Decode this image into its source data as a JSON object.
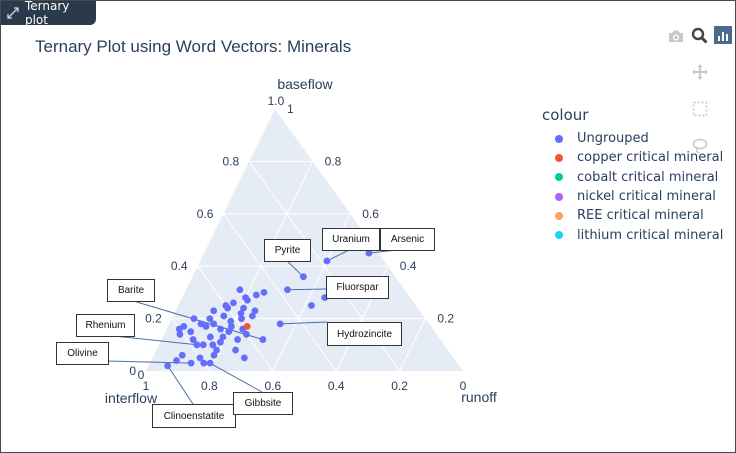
{
  "window": {
    "tab_label": "Ternary plot"
  },
  "colors": {
    "accent": "#636efa",
    "ternary_bg": "#e5ecf6",
    "text": "#2a3f5f",
    "copper": "#ef553b",
    "cobalt": "#00cc96",
    "nickel": "#ab63fa",
    "ree": "#ffa15a",
    "lithium": "#19d3f3"
  },
  "chart_data": {
    "type": "scatter",
    "subtype": "ternary",
    "title": "Ternary Plot using Word Vectors: Minerals",
    "axes": {
      "a": {
        "label": "baseflow",
        "ticks": [
          "1.0",
          "0.8",
          "0.6",
          "0.4",
          "0.2",
          "0"
        ]
      },
      "b": {
        "label": "interflow",
        "ticks": [
          "1",
          "0.8",
          "0.6",
          "0.4",
          "0.2",
          "0"
        ]
      },
      "c": {
        "label": "runoff",
        "ticks": [
          "0",
          "0.2",
          "0.4",
          "0.6",
          "0.8",
          "1"
        ]
      }
    },
    "legend": {
      "title": "colour",
      "placement": "right",
      "items": [
        {
          "name": "Ungrouped",
          "color": "#636efa"
        },
        {
          "name": "copper critical mineral",
          "color": "#ef553b"
        },
        {
          "name": "cobalt critical mineral",
          "color": "#00cc96"
        },
        {
          "name": "nickel critical mineral",
          "color": "#ab63fa"
        },
        {
          "name": "REE critical mineral",
          "color": "#ffa15a"
        },
        {
          "name": "lithium critical mineral",
          "color": "#19d3f3"
        }
      ]
    },
    "series": [
      {
        "name": "Ungrouped",
        "points": [
          [
            0.16,
            0.8,
            0.04
          ],
          [
            0.17,
            0.78,
            0.05
          ],
          [
            0.15,
            0.77,
            0.08
          ],
          [
            0.18,
            0.72,
            0.1
          ],
          [
            0.2,
            0.73,
            0.07
          ],
          [
            0.12,
            0.78,
            0.1
          ],
          [
            0.14,
            0.81,
            0.05
          ],
          [
            0.18,
            0.68,
            0.14
          ],
          [
            0.16,
            0.67,
            0.17
          ],
          [
            0.13,
            0.72,
            0.15
          ],
          [
            0.1,
            0.78,
            0.12
          ],
          [
            0.1,
            0.73,
            0.17
          ],
          [
            0.21,
            0.63,
            0.16
          ],
          [
            0.24,
            0.6,
            0.16
          ],
          [
            0.2,
            0.58,
            0.22
          ],
          [
            0.22,
            0.57,
            0.21
          ],
          [
            0.24,
            0.55,
            0.21
          ],
          [
            0.27,
            0.52,
            0.21
          ],
          [
            0.23,
            0.52,
            0.25
          ],
          [
            0.21,
            0.54,
            0.25
          ],
          [
            0.29,
            0.48,
            0.23
          ],
          [
            0.31,
            0.52,
            0.17
          ],
          [
            0.17,
            0.63,
            0.2
          ],
          [
            0.15,
            0.65,
            0.2
          ],
          [
            0.12,
            0.64,
            0.24
          ],
          [
            0.14,
            0.6,
            0.26
          ],
          [
            0.08,
            0.73,
            0.19
          ],
          [
            0.06,
            0.75,
            0.19
          ],
          [
            0.05,
            0.8,
            0.15
          ],
          [
            0.06,
            0.85,
            0.09
          ],
          [
            0.03,
            0.84,
            0.13
          ],
          [
            0.03,
            0.8,
            0.17
          ],
          [
            0.04,
            0.88,
            0.08
          ],
          [
            0.02,
            0.92,
            0.06
          ],
          [
            0.03,
            0.78,
            0.19
          ],
          [
            0.08,
            0.67,
            0.25
          ],
          [
            0.2,
            0.68,
            0.12
          ],
          [
            0.23,
            0.65,
            0.12
          ],
          [
            0.11,
            0.7,
            0.19
          ],
          [
            0.25,
            0.6,
            0.15
          ],
          [
            0.13,
            0.68,
            0.19
          ],
          [
            0.19,
            0.62,
            0.19
          ],
          [
            0.16,
            0.6,
            0.24
          ],
          [
            0.17,
            0.71,
            0.12
          ],
          [
            0.1,
            0.76,
            0.14
          ],
          [
            0.3,
            0.45,
            0.25
          ],
          [
            0.28,
            0.52,
            0.2
          ],
          [
            0.26,
            0.57,
            0.17
          ],
          [
            0.31,
            0.37,
            0.32
          ],
          [
            0.42,
            0.18,
            0.4
          ],
          [
            0.36,
            0.29,
            0.35
          ],
          [
            0.28,
            0.27,
            0.45
          ],
          [
            0.45,
            0.03,
            0.52
          ],
          [
            0.25,
            0.33,
            0.42
          ],
          [
            0.12,
            0.56,
            0.32
          ],
          [
            0.18,
            0.47,
            0.35
          ],
          [
            0.05,
            0.66,
            0.29
          ]
        ]
      },
      {
        "name": "copper critical mineral",
        "points": [
          [
            0.17,
            0.58,
            0.25
          ]
        ]
      }
    ],
    "annotations": [
      {
        "text": "Uranium",
        "point": [
          0.42,
          0.18,
          0.4
        ]
      },
      {
        "text": "Arsenic",
        "point": [
          0.45,
          0.03,
          0.52
        ]
      },
      {
        "text": "Pyrite",
        "point": [
          0.36,
          0.29,
          0.35
        ]
      },
      {
        "text": "Fluorspar",
        "point": [
          0.31,
          0.37,
          0.32
        ]
      },
      {
        "text": "Hydrozincite",
        "point": [
          0.18,
          0.47,
          0.35
        ]
      },
      {
        "text": "Barite",
        "point": [
          0.12,
          0.56,
          0.32
        ]
      },
      {
        "text": "Rhenium",
        "point": [
          0.1,
          0.78,
          0.12
        ]
      },
      {
        "text": "Olivine",
        "point": [
          0.03,
          0.84,
          0.13
        ]
      },
      {
        "text": "Clinoenstatite",
        "point": [
          0.02,
          0.92,
          0.06
        ]
      },
      {
        "text": "Gibbsite",
        "point": [
          0.03,
          0.78,
          0.19
        ]
      }
    ]
  }
}
